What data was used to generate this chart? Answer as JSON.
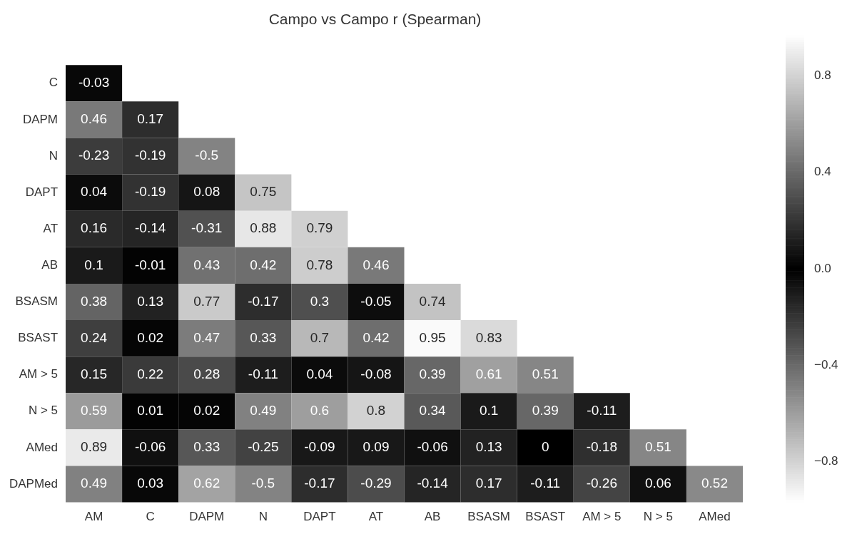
{
  "chart_data": {
    "type": "heatmap",
    "title": "Campo vs Campo r (Spearman)",
    "categories": [
      "AM",
      "C",
      "DAPM",
      "N",
      "DAPT",
      "AT",
      "AB",
      "BSASM",
      "BSAST",
      "AM > 5",
      "N > 5",
      "AMed"
    ],
    "y_categories": [
      "C",
      "DAPM",
      "N",
      "DAPT",
      "AT",
      "AB",
      "BSASM",
      "BSAST",
      "AM > 5",
      "N > 5",
      "AMed",
      "DAPMed"
    ],
    "cells": [
      [
        -0.03,
        null,
        null,
        null,
        null,
        null,
        null,
        null,
        null,
        null,
        null,
        null
      ],
      [
        0.46,
        0.17,
        null,
        null,
        null,
        null,
        null,
        null,
        null,
        null,
        null,
        null
      ],
      [
        -0.23,
        -0.19,
        -0.5,
        null,
        null,
        null,
        null,
        null,
        null,
        null,
        null,
        null
      ],
      [
        0.04,
        -0.19,
        0.08,
        0.75,
        null,
        null,
        null,
        null,
        null,
        null,
        null,
        null
      ],
      [
        0.16,
        -0.14,
        -0.31,
        0.88,
        0.79,
        null,
        null,
        null,
        null,
        null,
        null,
        null
      ],
      [
        0.1,
        -0.01,
        0.43,
        0.42,
        0.78,
        0.46,
        null,
        null,
        null,
        null,
        null,
        null
      ],
      [
        0.38,
        0.13,
        0.77,
        -0.17,
        0.3,
        -0.05,
        0.74,
        null,
        null,
        null,
        null,
        null
      ],
      [
        0.24,
        0.02,
        0.47,
        0.33,
        0.7,
        0.42,
        0.95,
        0.83,
        null,
        null,
        null,
        null
      ],
      [
        0.15,
        0.22,
        0.28,
        -0.11,
        0.04,
        -0.08,
        0.39,
        0.61,
        0.51,
        null,
        null,
        null
      ],
      [
        0.59,
        0.01,
        0.02,
        0.49,
        0.6,
        0.8,
        0.34,
        0.1,
        0.39,
        -0.11,
        null,
        null
      ],
      [
        0.89,
        -0.06,
        0.33,
        -0.25,
        -0.09,
        0.09,
        -0.06,
        0.13,
        0,
        -0.18,
        0.51,
        null
      ],
      [
        0.49,
        0.03,
        0.62,
        -0.5,
        -0.17,
        -0.29,
        -0.14,
        0.17,
        -0.11,
        -0.26,
        0.06,
        0.52
      ]
    ],
    "clim": [
      -0.97,
      0.97
    ],
    "cticks": [
      {
        "value": -0.8,
        "label": "−0.8"
      },
      {
        "value": -0.4,
        "label": "−0.4"
      },
      {
        "value": 0,
        "label": "0.0"
      },
      {
        "value": 0.4,
        "label": "0.4"
      },
      {
        "value": 0.8,
        "label": "0.8"
      }
    ],
    "data_labels": true
  }
}
